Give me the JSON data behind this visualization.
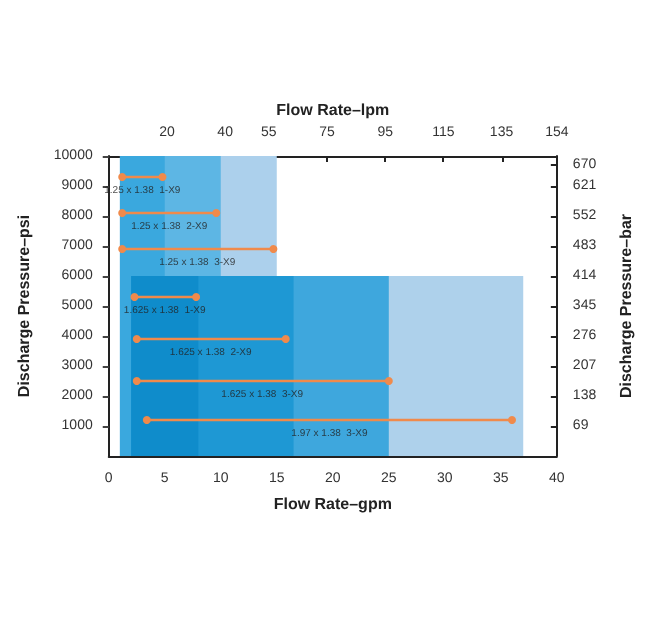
{
  "chart_data": {
    "type": "line",
    "xlabel": "Flow Rate–gpm",
    "ylabel": "Discharge Pressure–psi",
    "x2label": "Flow Rate–lpm",
    "y2label": "Discharge Pressure–bar",
    "xlim": [
      0,
      40
    ],
    "xticks": [
      0,
      5,
      10,
      15,
      20,
      25,
      30,
      35,
      40
    ],
    "ylim": [
      0,
      10000
    ],
    "yticks": [
      1000,
      2000,
      3000,
      4000,
      5000,
      6000,
      7000,
      8000,
      9000,
      10000
    ],
    "x2lim": [
      0,
      154
    ],
    "x2ticks": [
      20,
      40,
      55,
      75,
      95,
      115,
      135,
      154
    ],
    "y2lim": [
      0,
      690
    ],
    "y2ticks": [
      69,
      138,
      207,
      276,
      345,
      414,
      483,
      552,
      621,
      670
    ],
    "grid": false,
    "marker": "circle",
    "line_style": "solid",
    "series": [
      {
        "type": "area",
        "marker": "none",
        "color": "#acd0ec",
        "x": [
          1,
          15
        ],
        "values": [
          10000,
          10000
        ]
      },
      {
        "type": "area",
        "marker": "none",
        "color": "#5db6e4",
        "x": [
          1,
          10
        ],
        "values": [
          10000,
          10000
        ]
      },
      {
        "type": "area",
        "marker": "none",
        "color": "#3aa8de",
        "x": [
          1,
          5
        ],
        "values": [
          10000,
          10000
        ]
      },
      {
        "type": "area",
        "marker": "none",
        "color": "#aed1eb",
        "x": [
          2,
          37
        ],
        "values": [
          6000,
          6000
        ]
      },
      {
        "type": "area",
        "marker": "none",
        "color": "#3ea7dd",
        "x": [
          2,
          25
        ],
        "values": [
          6000,
          6000
        ]
      },
      {
        "type": "area",
        "marker": "none",
        "color": "#1e98d4",
        "x": [
          2,
          16.5
        ],
        "values": [
          6000,
          6000
        ]
      },
      {
        "type": "area",
        "marker": "none",
        "color": "#0f8ccb",
        "x": [
          2,
          8
        ],
        "values": [
          6000,
          6000
        ]
      },
      {
        "color": "#f08a4b",
        "x": [
          1.2,
          4.8
        ],
        "values": [
          9300,
          9300
        ]
      },
      {
        "color": "#f08a4b",
        "x": [
          1.2,
          9.6
        ],
        "values": [
          8100,
          8100
        ]
      },
      {
        "color": "#f08a4b",
        "x": [
          1.2,
          14.7
        ],
        "values": [
          6900,
          6900
        ]
      },
      {
        "color": "#f08a4b",
        "x": [
          2.3,
          7.8
        ],
        "values": [
          5300,
          5300
        ]
      },
      {
        "color": "#f08a4b",
        "x": [
          2.5,
          15.8
        ],
        "values": [
          3900,
          3900
        ]
      },
      {
        "color": "#f08a4b",
        "x": [
          2.5,
          25
        ],
        "values": [
          2500,
          2500
        ]
      },
      {
        "color": "#f08a4b",
        "x": [
          3.4,
          36
        ],
        "values": [
          1200,
          1200
        ]
      }
    ],
    "annotations": [
      {
        "text": "1.25 x 1.38  1-X9",
        "x": 3,
        "y": 9300
      },
      {
        "text": "1.25 x 1.38  2-X9",
        "x": 5.4,
        "y": 8100
      },
      {
        "text": "1.25 x 1.38  3-X9",
        "x": 7.9,
        "y": 6900
      },
      {
        "text": "1.625 x 1.38  1-X9",
        "x": 5,
        "y": 5300
      },
      {
        "text": "1.625 x 1.38  2-X9",
        "x": 9.1,
        "y": 3900
      },
      {
        "text": "1.625 x 1.38  3-X9",
        "x": 13.7,
        "y": 2500
      },
      {
        "text": "1.97 x 1.38  3-X9",
        "x": 19.7,
        "y": 1200
      }
    ]
  }
}
